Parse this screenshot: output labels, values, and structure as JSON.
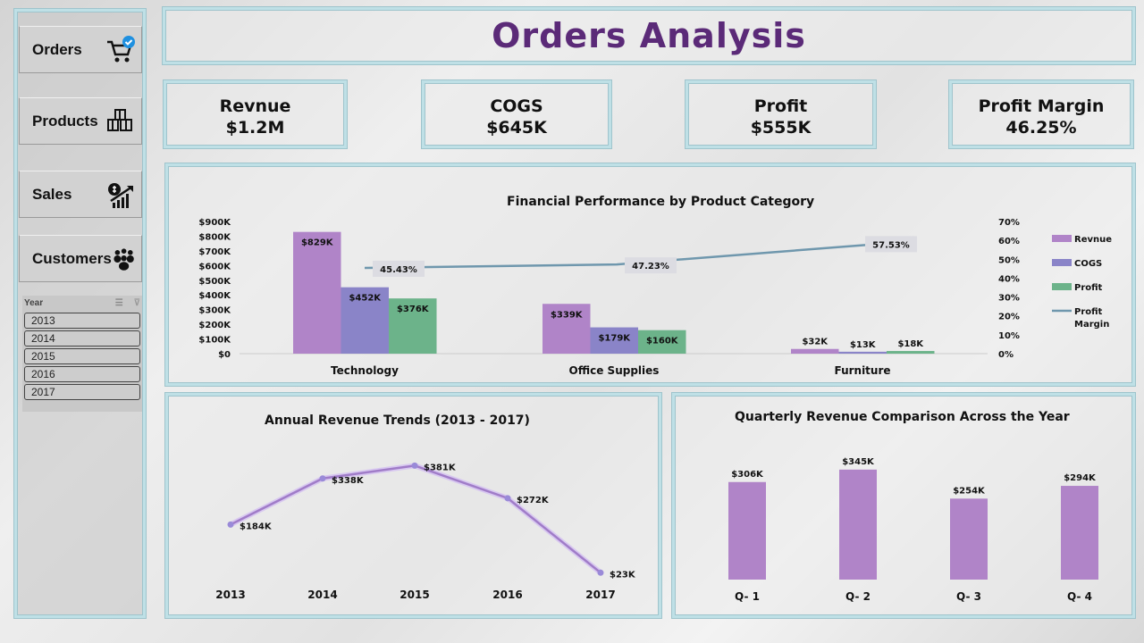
{
  "sidebar": {
    "nav": [
      {
        "label": "Orders",
        "icon": "cart-check-icon"
      },
      {
        "label": "Products",
        "icon": "boxes-icon"
      },
      {
        "label": "Sales",
        "icon": "money-growth-icon"
      },
      {
        "label": "Customers",
        "icon": "users-icon"
      }
    ],
    "slicer": {
      "title": "Year",
      "items": [
        "2013",
        "2014",
        "2015",
        "2016",
        "2017"
      ]
    }
  },
  "header": {
    "title": "Orders Analysis"
  },
  "kpis": [
    {
      "label": "Revnue",
      "value": "$1.2M"
    },
    {
      "label": "COGS",
      "value": "$645K"
    },
    {
      "label": "Profit",
      "value": "$555K"
    },
    {
      "label": "Profit Margin",
      "value": "46.25%"
    }
  ],
  "colors": {
    "revenue": "#b084c8",
    "cogs": "#8a84c8",
    "profit": "#6cb38a",
    "margin": "#6f97ad",
    "title": "#5b2a78"
  },
  "chart_data": [
    {
      "type": "bar",
      "title": "Financial Performance by Product Category",
      "categories": [
        "Technology",
        "Office Supplies",
        "Furniture"
      ],
      "series": [
        {
          "name": "Revnue",
          "values": [
            829,
            339,
            32
          ],
          "labels": [
            "$829K",
            "$339K",
            "$32K"
          ]
        },
        {
          "name": "COGS",
          "values": [
            452,
            179,
            13
          ],
          "labels": [
            "$452K",
            "$179K",
            "$13K"
          ]
        },
        {
          "name": "Profit",
          "values": [
            376,
            160,
            18
          ],
          "labels": [
            "$376K",
            "$160K",
            "$18K"
          ]
        }
      ],
      "line_series": {
        "name": "Profit Margin",
        "values": [
          45.43,
          47.23,
          57.53
        ],
        "labels": [
          "45.43%",
          "47.23%",
          "57.53%"
        ]
      },
      "y_ticks": [
        "$0",
        "$100K",
        "$200K",
        "$300K",
        "$400K",
        "$500K",
        "$600K",
        "$700K",
        "$800K",
        "$900K"
      ],
      "ylim": [
        0,
        900
      ],
      "y2_ticks": [
        "0%",
        "10%",
        "20%",
        "30%",
        "40%",
        "50%",
        "60%",
        "70%"
      ],
      "y2lim": [
        0,
        70
      ],
      "legend": [
        "Revnue",
        "COGS",
        "Profit",
        "Profit Margin"
      ],
      "legend_position": "right"
    },
    {
      "type": "line",
      "title": "Annual Revenue Trends (2013 - 2017)",
      "categories": [
        "2013",
        "2014",
        "2015",
        "2016",
        "2017"
      ],
      "values": [
        184,
        338,
        381,
        272,
        23
      ],
      "labels": [
        "$184K",
        "$338K",
        "$381K",
        "$272K",
        "$23K"
      ]
    },
    {
      "type": "bar",
      "title": "Quarterly Revenue Comparison Across the Year",
      "categories": [
        "Q- 1",
        "Q- 2",
        "Q- 3",
        "Q- 4"
      ],
      "values": [
        306,
        345,
        254,
        294
      ],
      "labels": [
        "$306K",
        "$345K",
        "$254K",
        "$294K"
      ]
    }
  ]
}
